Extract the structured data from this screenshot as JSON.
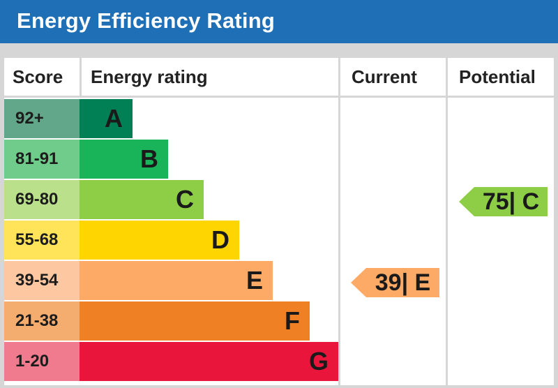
{
  "header": {
    "title": "Energy Efficiency Rating"
  },
  "columns": {
    "score": "Score",
    "rating": "Energy rating",
    "current": "Current",
    "potential": "Potential"
  },
  "chart_data": {
    "type": "table",
    "title": "Energy Efficiency Rating",
    "bands": [
      {
        "letter": "A",
        "range": "92+",
        "min": 92,
        "max": 100,
        "color": "#008054",
        "score_color": "#62a789"
      },
      {
        "letter": "B",
        "range": "81-91",
        "min": 81,
        "max": 91,
        "color": "#19b459",
        "score_color": "#6fcc8a"
      },
      {
        "letter": "C",
        "range": "69-80",
        "min": 69,
        "max": 80,
        "color": "#8dce46",
        "score_color": "#bbe08c"
      },
      {
        "letter": "D",
        "range": "55-68",
        "min": 55,
        "max": 68,
        "color": "#ffd500",
        "score_color": "#ffe45a"
      },
      {
        "letter": "E",
        "range": "39-54",
        "min": 39,
        "max": 54,
        "color": "#fcaa65",
        "score_color": "#fdc8a1"
      },
      {
        "letter": "F",
        "range": "21-38",
        "min": 21,
        "max": 38,
        "color": "#ef8023",
        "score_color": "#f5ac6f"
      },
      {
        "letter": "G",
        "range": "1-20",
        "min": 1,
        "max": 20,
        "color": "#e9153b",
        "score_color": "#f07a8e"
      }
    ],
    "current": {
      "value": 39,
      "band": "E",
      "label": "39| E",
      "color": "#fcaa65"
    },
    "potential": {
      "value": 75,
      "band": "C",
      "label": "75| C",
      "color": "#8dce46"
    }
  }
}
